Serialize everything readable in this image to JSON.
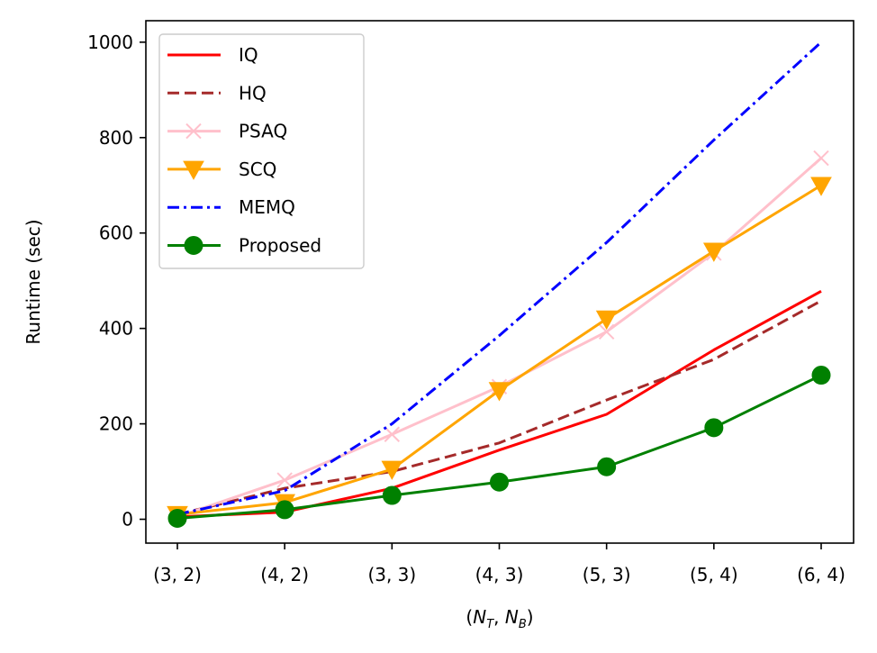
{
  "chart_data": {
    "type": "line",
    "title": "",
    "xlabel": "(N_T, N_B)",
    "xlabel_parts": {
      "open": "(",
      "n1": "N",
      "s1": "T",
      "comma": ", ",
      "n2": "N",
      "s2": "B",
      "close": ")"
    },
    "ylabel": "Runtime (sec)",
    "categories": [
      "(3, 2)",
      "(4, 2)",
      "(3, 3)",
      "(4, 3)",
      "(5, 3)",
      "(5, 4)",
      "(6, 4)"
    ],
    "ylim": [
      -50,
      1045
    ],
    "yticks": [
      0,
      200,
      400,
      600,
      800,
      1000
    ],
    "grid": false,
    "legend_position": "top-left",
    "series": [
      {
        "name": "IQ",
        "color": "#ff0000",
        "dash": "solid",
        "marker": "none",
        "values": [
          5,
          15,
          65,
          145,
          220,
          355,
          478
        ]
      },
      {
        "name": "HQ",
        "color": "#a52a2a",
        "dash": "dashed",
        "marker": "none",
        "values": [
          10,
          65,
          100,
          160,
          250,
          335,
          458
        ]
      },
      {
        "name": "PSAQ",
        "color": "#ffc0cb",
        "dash": "solid",
        "marker": "x",
        "values": [
          5,
          82,
          178,
          278,
          393,
          558,
          757
        ]
      },
      {
        "name": "SCQ",
        "color": "#ffa500",
        "dash": "solid",
        "marker": "triangle-down",
        "values": [
          10,
          35,
          105,
          270,
          420,
          562,
          700
        ]
      },
      {
        "name": "MEMQ",
        "color": "#0000ff",
        "dash": "dashdot",
        "marker": "none",
        "values": [
          10,
          60,
          200,
          385,
          580,
          795,
          1000
        ]
      },
      {
        "name": "Proposed",
        "color": "#008000",
        "dash": "solid",
        "marker": "circle",
        "values": [
          2,
          20,
          50,
          78,
          110,
          192,
          302
        ]
      }
    ]
  }
}
